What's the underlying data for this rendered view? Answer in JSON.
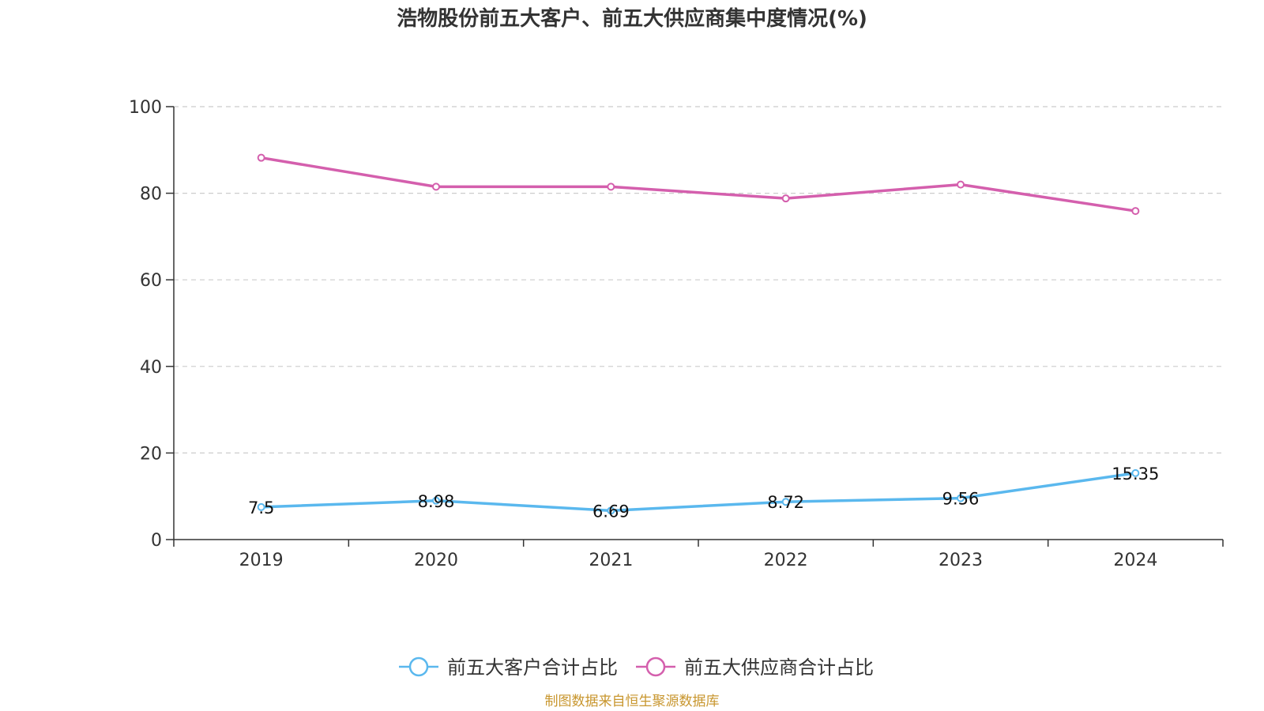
{
  "chart_data": {
    "type": "line",
    "title": "浩物股份前五大客户、前五大供应商集中度情况(%)",
    "categories": [
      "2019",
      "2020",
      "2021",
      "2022",
      "2023",
      "2024"
    ],
    "ylim": [
      0,
      100
    ],
    "yticks": [
      "0",
      "20",
      "40",
      "60",
      "80",
      "100"
    ],
    "grid": true,
    "legend_position": "bottom",
    "series": [
      {
        "name": "前五大客户合计占比",
        "color": "#5ab8ee",
        "values": [
          7.5,
          8.98,
          6.69,
          8.72,
          9.56,
          15.35
        ],
        "labels": [
          "7.5",
          "8.98",
          "6.69",
          "8.72",
          "9.56",
          "15.35"
        ]
      },
      {
        "name": "前五大供应商合计占比",
        "color": "#d45fad",
        "values": [
          88.2,
          81.5,
          81.5,
          78.8,
          82.0,
          75.9
        ]
      }
    ],
    "source": "制图数据来自恒生聚源数据库"
  }
}
